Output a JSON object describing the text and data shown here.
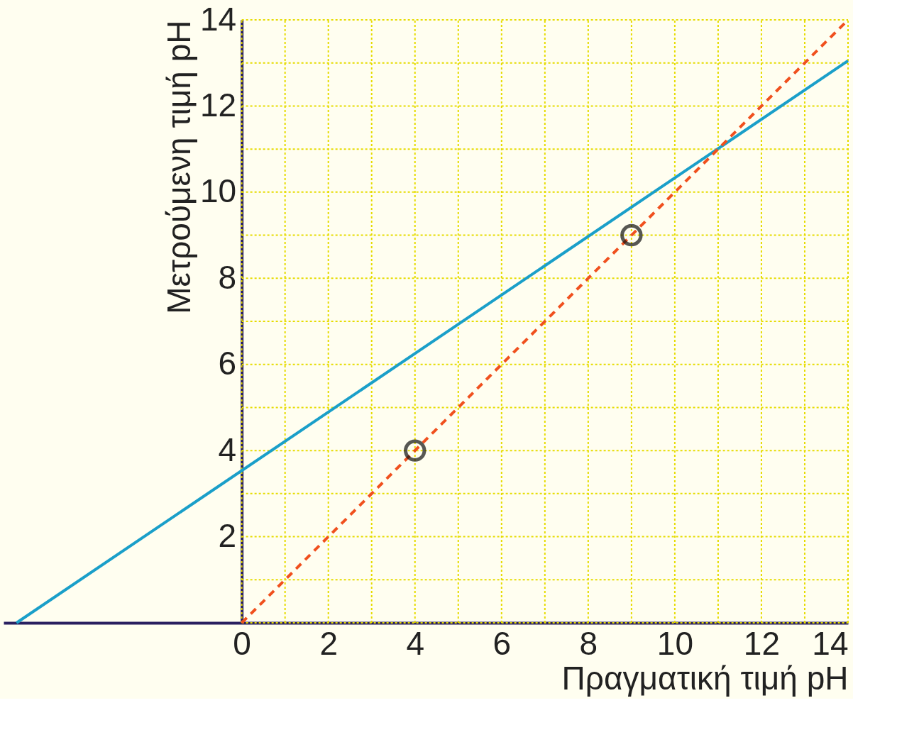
{
  "chart_data": {
    "type": "line",
    "xlabel": "Πραγματική τιμή pH",
    "ylabel": "Μετρούμενη τιμή pH",
    "xlim": [
      -5.5,
      14
    ],
    "ylim": [
      0,
      14
    ],
    "xticks": [
      0,
      {
        "value": 1,
        "label": null
      },
      2,
      {
        "value": 3,
        "label": null
      },
      4,
      {
        "value": 5,
        "label": null
      },
      6,
      {
        "value": 7,
        "label": null
      },
      8,
      {
        "value": 9,
        "label": null
      },
      10,
      {
        "value": 11,
        "label": null
      },
      12,
      {
        "value": 13,
        "label": null
      },
      14
    ],
    "yticks": [
      {
        "value": 0,
        "label": null
      },
      {
        "value": 1,
        "label": null
      },
      2,
      {
        "value": 3,
        "label": null
      },
      4,
      {
        "value": 5,
        "label": null
      },
      6,
      {
        "value": 7,
        "label": null
      },
      8,
      {
        "value": 9,
        "label": null
      },
      10,
      {
        "value": 11,
        "label": null
      },
      12,
      {
        "value": 13,
        "label": null
      },
      14
    ],
    "grid": true,
    "series": [
      {
        "color": "#1a9fc9",
        "x": [
          -5.2,
          14
        ],
        "values": [
          0,
          13.05
        ],
        "line_style": "solid",
        "marker": "none"
      },
      {
        "color": "#f0501e",
        "x": [
          0,
          14
        ],
        "values": [
          0,
          14
        ],
        "line_style": "dashed",
        "marker": "none"
      },
      {
        "type": "scatter",
        "color": "#111111",
        "x": [
          4,
          9
        ],
        "values": [
          4,
          9
        ],
        "marker": "circle"
      }
    ]
  }
}
